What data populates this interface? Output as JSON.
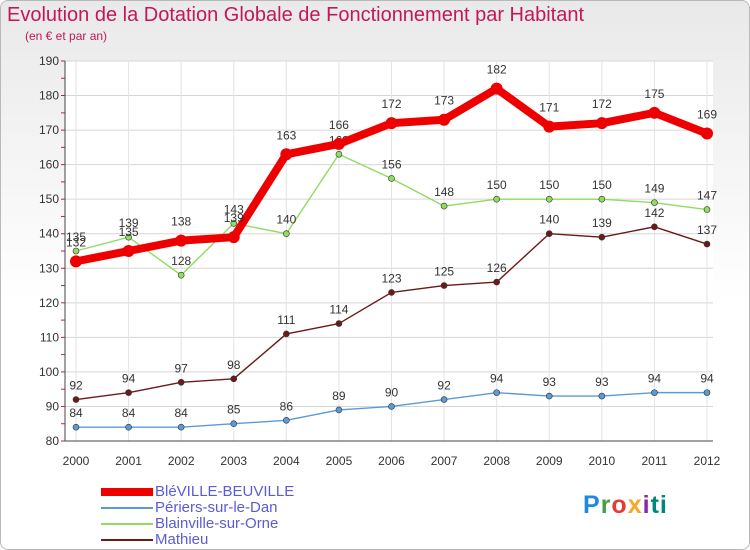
{
  "header": {
    "title": "Evolution de la Dotation Globale de Fonctionnement par Habitant",
    "subtitle": "(en € et par an)"
  },
  "logo": {
    "text": "Proxiti"
  },
  "colors": {
    "title": "#c2185b",
    "axis_labels": "#333333",
    "legend_text": "#5b5bd6"
  },
  "chart_data": {
    "type": "line",
    "title": "Evolution de la Dotation Globale de Fonctionnement par Habitant",
    "subtitle": "(en € et par an)",
    "x": [
      "2000",
      "2001",
      "2002",
      "2003",
      "2004",
      "2005",
      "2006",
      "2007",
      "2008",
      "2009",
      "2010",
      "2011",
      "2012"
    ],
    "ylim": [
      80,
      190
    ],
    "yticks": [
      80,
      90,
      100,
      110,
      120,
      130,
      140,
      150,
      160,
      170,
      180,
      190
    ],
    "grid": true,
    "legend_position": "bottom-left",
    "series": [
      {
        "name": "Mathieu",
        "color": "#6b1a1a",
        "values": [
          92,
          94,
          97,
          98,
          111,
          114,
          123,
          125,
          126,
          140,
          139,
          142,
          137
        ]
      },
      {
        "name": "Blainville-sur-Orne",
        "color": "#8fdc5e",
        "values": [
          135,
          139,
          128,
          143,
          140,
          163,
          156,
          148,
          150,
          150,
          150,
          149,
          147
        ]
      },
      {
        "name": "Périers-sur-le-Dan",
        "color": "#5b9bd5",
        "values": [
          84,
          84,
          84,
          85,
          86,
          89,
          90,
          92,
          94,
          93,
          93,
          94,
          94
        ]
      },
      {
        "name": "BléVILLE-BEUVILLE",
        "color": "#ee0000",
        "values": [
          132,
          135,
          138,
          139,
          163,
          166,
          172,
          173,
          182,
          171,
          172,
          175,
          169
        ]
      }
    ],
    "legend": [
      "BléVILLE-BEUVILLE",
      "Périers-sur-le-Dan",
      "Blainville-sur-Orne",
      "Mathieu"
    ]
  }
}
